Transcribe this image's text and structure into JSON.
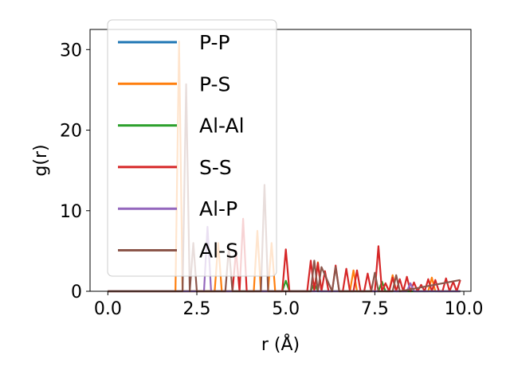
{
  "chart_data": {
    "type": "line",
    "title": "",
    "xlabel": "r (Å)",
    "ylabel": "g(r)",
    "xlim": [
      -0.5,
      10.2
    ],
    "ylim": [
      0,
      32.5
    ],
    "xticks": [
      {
        "value": 0.0,
        "label": "0.0"
      },
      {
        "value": 2.5,
        "label": "2.5"
      },
      {
        "value": 5.0,
        "label": "5.0"
      },
      {
        "value": 7.5,
        "label": "7.5"
      },
      {
        "value": 10.0,
        "label": "10.0"
      }
    ],
    "yticks": [
      {
        "value": 0,
        "label": "0"
      },
      {
        "value": 10,
        "label": "10"
      },
      {
        "value": 20,
        "label": "20"
      },
      {
        "value": 30,
        "label": "30"
      }
    ],
    "grid": false,
    "legend": {
      "position": "upper-left"
    },
    "series": [
      {
        "name": "P-P",
        "color": "#1f77b4",
        "x": [
          0.0,
          9.9
        ],
        "y": [
          0,
          0
        ]
      },
      {
        "name": "P-S",
        "color": "#ff7f0e",
        "x": [
          0.0,
          1.9,
          2.0,
          2.1,
          3.0,
          3.1,
          3.2,
          4.1,
          4.2,
          4.3,
          4.5,
          4.6,
          4.7,
          5.8,
          5.9,
          6.0,
          6.8,
          6.9,
          7.0,
          7.9,
          8.0,
          8.1,
          9.0,
          9.1,
          9.2,
          9.9
        ],
        "y": [
          0,
          0,
          31,
          0,
          0,
          6,
          0,
          0,
          7.5,
          0,
          0,
          6,
          0,
          0,
          3.6,
          0,
          0,
          2.6,
          0,
          0,
          2,
          0,
          0,
          1.7,
          0,
          0
        ]
      },
      {
        "name": "Al-Al",
        "color": "#2ca02c",
        "x": [
          0.0,
          4.9,
          5.0,
          5.1,
          5.7,
          5.8,
          5.9,
          7.6,
          7.7,
          7.8,
          9.9
        ],
        "y": [
          0,
          0,
          1.3,
          0,
          0,
          1,
          0,
          0,
          1.2,
          0,
          0
        ]
      },
      {
        "name": "S-S",
        "color": "#d62728",
        "x": [
          0.0,
          3.5,
          3.6,
          3.7,
          3.8,
          3.9,
          4.0,
          4.9,
          5.0,
          5.1,
          5.6,
          5.7,
          5.8,
          5.9,
          6.0,
          6.1,
          6.2,
          6.3,
          6.4,
          6.5,
          6.6,
          6.7,
          6.8,
          6.9,
          7.0,
          7.1,
          7.2,
          7.3,
          7.4,
          7.5,
          7.6,
          7.7,
          7.8,
          7.9,
          8.0,
          8.1,
          8.2,
          8.3,
          8.4,
          8.5,
          8.6,
          8.7,
          8.8,
          8.9,
          9.0,
          9.1,
          9.2,
          9.3,
          9.4,
          9.5,
          9.6,
          9.7,
          9.8,
          9.9
        ],
        "y": [
          0,
          0,
          5,
          0,
          9,
          0,
          0,
          0,
          5.2,
          0,
          0,
          3.8,
          0,
          3.5,
          0,
          2.5,
          0,
          0,
          3.2,
          0,
          0,
          2.8,
          0,
          0,
          2.6,
          0,
          0,
          2.2,
          0,
          0,
          5.6,
          0,
          1,
          0,
          1.7,
          0,
          1.5,
          0,
          1.8,
          0,
          1.1,
          0,
          0.8,
          0,
          1.5,
          0,
          1.4,
          0,
          0,
          1.6,
          0,
          1.2,
          0,
          1.4
        ]
      },
      {
        "name": "Al-P",
        "color": "#9467bd",
        "x": [
          0.0,
          2.7,
          2.8,
          2.9,
          8.4,
          8.5,
          8.6,
          9.9
        ],
        "y": [
          0,
          0,
          8,
          0,
          0,
          1,
          0,
          0
        ]
      },
      {
        "name": "Al-S",
        "color": "#8c564b",
        "x": [
          0.0,
          2.1,
          2.2,
          2.3,
          2.4,
          2.5,
          3.3,
          3.4,
          3.5,
          4.3,
          4.4,
          4.5,
          5.7,
          5.8,
          5.9,
          6.0,
          6.3,
          6.4,
          6.5,
          7.4,
          7.5,
          7.6,
          8.0,
          8.1,
          8.2,
          9.9
        ],
        "y": [
          0,
          0,
          25.7,
          0,
          6,
          0,
          0,
          5.5,
          0,
          0,
          13.2,
          0,
          0,
          3.8,
          0,
          3,
          0,
          3,
          0,
          0,
          2.3,
          0,
          0,
          2,
          0,
          1.4
        ]
      }
    ]
  }
}
